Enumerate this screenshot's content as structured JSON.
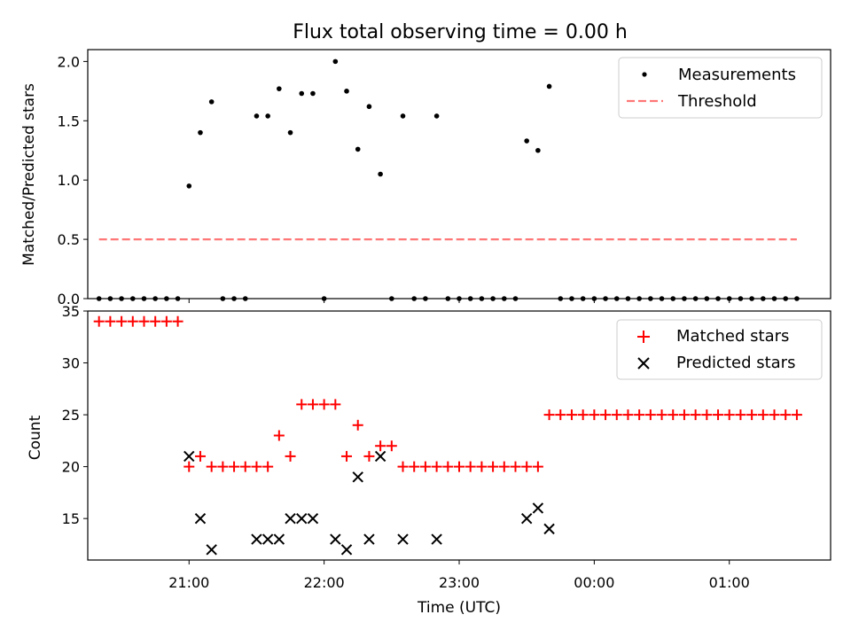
{
  "title": "Flux total observing time = 0.00 h",
  "colors": {
    "measurement": "#000000",
    "threshold": "#ff7777",
    "matched": "#ff0000",
    "predicted": "#000000"
  },
  "chart_data": [
    {
      "type": "scatter",
      "ylabel": "Matched/Predicted stars",
      "ylim": [
        0,
        2.1
      ],
      "yticks": [
        "0.0",
        "0.5",
        "1.0",
        "1.5",
        "2.0"
      ],
      "xlim": [
        "20:15",
        "01:45"
      ],
      "legend": {
        "position": "top-right",
        "entries": [
          "Measurements",
          "Threshold"
        ]
      },
      "series": [
        {
          "name": "Measurements",
          "marker": "dot",
          "points": [
            [
              "20:20",
              0
            ],
            [
              "20:25",
              0
            ],
            [
              "20:30",
              0
            ],
            [
              "20:35",
              0
            ],
            [
              "20:40",
              0
            ],
            [
              "20:45",
              0
            ],
            [
              "20:50",
              0
            ],
            [
              "20:55",
              0
            ],
            [
              "21:00",
              0.95
            ],
            [
              "21:05",
              1.4
            ],
            [
              "21:10",
              1.66
            ],
            [
              "21:15",
              0
            ],
            [
              "21:20",
              0
            ],
            [
              "21:25",
              0
            ],
            [
              "21:30",
              1.54
            ],
            [
              "21:35",
              1.54
            ],
            [
              "21:40",
              1.77
            ],
            [
              "21:45",
              1.4
            ],
            [
              "21:50",
              1.73
            ],
            [
              "21:55",
              1.73
            ],
            [
              "22:00",
              0
            ],
            [
              "22:05",
              2.0
            ],
            [
              "22:10",
              1.75
            ],
            [
              "22:15",
              1.26
            ],
            [
              "22:20",
              1.62
            ],
            [
              "22:25",
              1.05
            ],
            [
              "22:30",
              0
            ],
            [
              "22:35",
              1.54
            ],
            [
              "22:40",
              0
            ],
            [
              "22:45",
              0
            ],
            [
              "22:50",
              1.54
            ],
            [
              "22:55",
              0
            ],
            [
              "23:00",
              0
            ],
            [
              "23:05",
              0
            ],
            [
              "23:10",
              0
            ],
            [
              "23:15",
              0
            ],
            [
              "23:20",
              0
            ],
            [
              "23:25",
              0
            ],
            [
              "23:30",
              1.33
            ],
            [
              "23:35",
              1.25
            ],
            [
              "23:40",
              1.79
            ],
            [
              "23:45",
              0
            ],
            [
              "23:50",
              0
            ],
            [
              "23:55",
              0
            ],
            [
              "00:00",
              0
            ],
            [
              "00:05",
              0
            ],
            [
              "00:10",
              0
            ],
            [
              "00:15",
              0
            ],
            [
              "00:20",
              0
            ],
            [
              "00:25",
              0
            ],
            [
              "00:30",
              0
            ],
            [
              "00:35",
              0
            ],
            [
              "00:40",
              0
            ],
            [
              "00:45",
              0
            ],
            [
              "00:50",
              0
            ],
            [
              "00:55",
              0
            ],
            [
              "01:00",
              0
            ],
            [
              "01:05",
              0
            ],
            [
              "01:10",
              0
            ],
            [
              "01:15",
              0
            ],
            [
              "01:20",
              0
            ],
            [
              "01:25",
              0
            ],
            [
              "01:30",
              0
            ]
          ]
        },
        {
          "name": "Threshold",
          "style": "dashed",
          "points": [
            [
              "20:20",
              0.5
            ],
            [
              "01:30",
              0.5
            ]
          ]
        }
      ]
    },
    {
      "type": "scatter",
      "ylabel": "Count",
      "xlabel": "Time (UTC)",
      "ylim": [
        11,
        35
      ],
      "yticks": [
        "15",
        "20",
        "25",
        "30",
        "35"
      ],
      "xlim": [
        "20:15",
        "01:45"
      ],
      "xticks": [
        "21:00",
        "22:00",
        "23:00",
        "00:00",
        "01:00"
      ],
      "legend": {
        "position": "top-right",
        "entries": [
          "Matched stars",
          "Predicted stars"
        ]
      },
      "series": [
        {
          "name": "Matched stars",
          "marker": "plus",
          "points": [
            [
              "20:20",
              34
            ],
            [
              "20:25",
              34
            ],
            [
              "20:30",
              34
            ],
            [
              "20:35",
              34
            ],
            [
              "20:40",
              34
            ],
            [
              "20:45",
              34
            ],
            [
              "20:50",
              34
            ],
            [
              "20:55",
              34
            ],
            [
              "21:00",
              20
            ],
            [
              "21:05",
              21
            ],
            [
              "21:10",
              20
            ],
            [
              "21:15",
              20
            ],
            [
              "21:20",
              20
            ],
            [
              "21:25",
              20
            ],
            [
              "21:30",
              20
            ],
            [
              "21:35",
              20
            ],
            [
              "21:40",
              23
            ],
            [
              "21:45",
              21
            ],
            [
              "21:50",
              26
            ],
            [
              "21:55",
              26
            ],
            [
              "22:00",
              26
            ],
            [
              "22:05",
              26
            ],
            [
              "22:10",
              21
            ],
            [
              "22:15",
              24
            ],
            [
              "22:20",
              21
            ],
            [
              "22:25",
              22
            ],
            [
              "22:30",
              22
            ],
            [
              "22:35",
              20
            ],
            [
              "22:40",
              20
            ],
            [
              "22:45",
              20
            ],
            [
              "22:50",
              20
            ],
            [
              "22:55",
              20
            ],
            [
              "23:00",
              20
            ],
            [
              "23:05",
              20
            ],
            [
              "23:10",
              20
            ],
            [
              "23:15",
              20
            ],
            [
              "23:20",
              20
            ],
            [
              "23:25",
              20
            ],
            [
              "23:30",
              20
            ],
            [
              "23:35",
              20
            ],
            [
              "23:40",
              25
            ],
            [
              "23:45",
              25
            ],
            [
              "23:50",
              25
            ],
            [
              "23:55",
              25
            ],
            [
              "00:00",
              25
            ],
            [
              "00:05",
              25
            ],
            [
              "00:10",
              25
            ],
            [
              "00:15",
              25
            ],
            [
              "00:20",
              25
            ],
            [
              "00:25",
              25
            ],
            [
              "00:30",
              25
            ],
            [
              "00:35",
              25
            ],
            [
              "00:40",
              25
            ],
            [
              "00:45",
              25
            ],
            [
              "00:50",
              25
            ],
            [
              "00:55",
              25
            ],
            [
              "01:00",
              25
            ],
            [
              "01:05",
              25
            ],
            [
              "01:10",
              25
            ],
            [
              "01:15",
              25
            ],
            [
              "01:20",
              25
            ],
            [
              "01:25",
              25
            ],
            [
              "01:30",
              25
            ]
          ]
        },
        {
          "name": "Predicted stars",
          "marker": "x",
          "points": [
            [
              "21:00",
              21
            ],
            [
              "21:05",
              15
            ],
            [
              "21:10",
              12
            ],
            [
              "21:30",
              13
            ],
            [
              "21:35",
              13
            ],
            [
              "21:40",
              13
            ],
            [
              "21:45",
              15
            ],
            [
              "21:50",
              15
            ],
            [
              "21:55",
              15
            ],
            [
              "22:05",
              13
            ],
            [
              "22:10",
              12
            ],
            [
              "22:15",
              19
            ],
            [
              "22:20",
              13
            ],
            [
              "22:25",
              21
            ],
            [
              "22:35",
              13
            ],
            [
              "22:50",
              13
            ],
            [
              "23:30",
              15
            ],
            [
              "23:35",
              16
            ],
            [
              "23:40",
              14
            ]
          ]
        }
      ]
    }
  ]
}
